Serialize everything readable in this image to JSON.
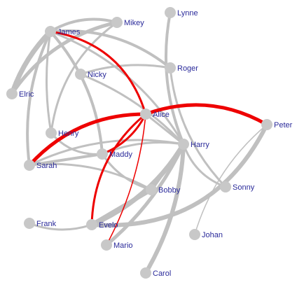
{
  "graph": {
    "node_color": "#c8c8c8",
    "edge_color": "#c0c0c0",
    "highlight_color": "#ee0000",
    "label_color": "#2a2a9a",
    "selected_node": "Alice",
    "nodes": [
      {
        "id": "James",
        "label": "James"
      },
      {
        "id": "Mikey",
        "label": "Mikey"
      },
      {
        "id": "Lynne",
        "label": "Lynne"
      },
      {
        "id": "Roger",
        "label": "Roger"
      },
      {
        "id": "Nicky",
        "label": "Nicky"
      },
      {
        "id": "Elric",
        "label": "Elric"
      },
      {
        "id": "Alice",
        "label": "Alice"
      },
      {
        "id": "Peter",
        "label": "Peter"
      },
      {
        "id": "Henry",
        "label": "Henry"
      },
      {
        "id": "Harry",
        "label": "Harry"
      },
      {
        "id": "Maddy",
        "label": "Maddy"
      },
      {
        "id": "Sarah",
        "label": "Sarah"
      },
      {
        "id": "Bobby",
        "label": "Bobby"
      },
      {
        "id": "Sonny",
        "label": "Sonny"
      },
      {
        "id": "Frank",
        "label": "Frank"
      },
      {
        "id": "Evelo",
        "label": "Evelo"
      },
      {
        "id": "Johan",
        "label": "Johan"
      },
      {
        "id": "Mario",
        "label": "Mario"
      },
      {
        "id": "Carol",
        "label": "Carol"
      }
    ],
    "edges": [
      {
        "source": "James",
        "target": "Mikey",
        "weight": 4
      },
      {
        "source": "James",
        "target": "Elric",
        "weight": 7
      },
      {
        "source": "Mikey",
        "target": "Elric",
        "weight": 5
      },
      {
        "source": "James",
        "target": "Roger",
        "weight": 4
      },
      {
        "source": "James",
        "target": "Sarah",
        "weight": 4
      },
      {
        "source": "James",
        "target": "Henry",
        "weight": 3
      },
      {
        "source": "James",
        "target": "Maddy",
        "weight": 4
      },
      {
        "source": "James",
        "target": "Harry",
        "weight": 3
      },
      {
        "source": "Mikey",
        "target": "Henry",
        "weight": 3
      },
      {
        "source": "Lynne",
        "target": "Harry",
        "weight": 4
      },
      {
        "source": "Roger",
        "target": "Nicky",
        "weight": 3
      },
      {
        "source": "Nicky",
        "target": "Maddy",
        "weight": 3
      },
      {
        "source": "Nicky",
        "target": "Harry",
        "weight": 3
      },
      {
        "source": "Henry",
        "target": "Maddy",
        "weight": 3
      },
      {
        "source": "Sarah",
        "target": "Maddy",
        "weight": 4
      },
      {
        "source": "Sarah",
        "target": "Bobby",
        "weight": 3
      },
      {
        "source": "Sarah",
        "target": "Harry",
        "weight": 3
      },
      {
        "source": "Maddy",
        "target": "Harry",
        "weight": 3
      },
      {
        "source": "Maddy",
        "target": "Bobby",
        "weight": 3
      },
      {
        "source": "Harry",
        "target": "Evelo",
        "weight": 7
      },
      {
        "source": "Harry",
        "target": "Mario",
        "weight": 5
      },
      {
        "source": "Harry",
        "target": "Carol",
        "weight": 6
      },
      {
        "source": "Harry",
        "target": "Bobby",
        "weight": 5
      },
      {
        "source": "Harry",
        "target": "Sonny",
        "weight": 3
      },
      {
        "source": "Peter",
        "target": "Johan",
        "weight": 1.5
      },
      {
        "source": "Peter",
        "target": "Evelo",
        "weight": 6
      },
      {
        "source": "Roger",
        "target": "Sonny",
        "weight": 3
      },
      {
        "source": "Frank",
        "target": "Evelo",
        "weight": 3
      },
      {
        "source": "Evelo",
        "target": "Bobby",
        "weight": 6
      },
      {
        "source": "Alice",
        "target": "Harry",
        "weight": 3
      },
      {
        "source": "James",
        "target": "Alice",
        "weight": 3,
        "highlight": true
      },
      {
        "source": "Alice",
        "target": "Sarah",
        "weight": 5,
        "highlight": true
      },
      {
        "source": "Alice",
        "target": "Peter",
        "weight": 5,
        "highlight": true
      },
      {
        "source": "Alice",
        "target": "Maddy",
        "weight": 3,
        "highlight": true
      },
      {
        "source": "Alice",
        "target": "Evelo",
        "weight": 3,
        "highlight": true
      },
      {
        "source": "Alice",
        "target": "Mario",
        "weight": 1.5,
        "highlight": true
      }
    ]
  }
}
